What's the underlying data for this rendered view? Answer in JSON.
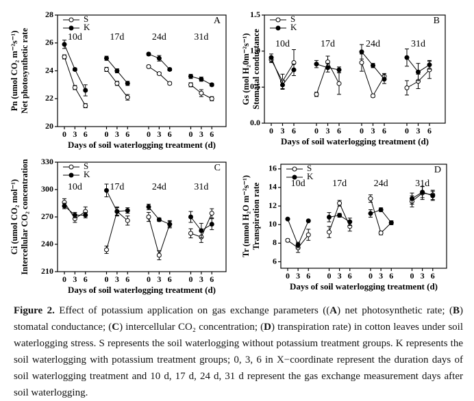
{
  "chart_data": [
    {
      "type": "line",
      "panel": "A",
      "y_label": [
        "Pn (umol CO₂ m⁻²s⁻¹)",
        "Net photosynthetic rate"
      ],
      "x_label": "Days of soil waterlogging treatment (d)",
      "groups": [
        "10d",
        "17d",
        "24d",
        "31d"
      ],
      "x": [
        0,
        3,
        6
      ],
      "ylim": [
        20,
        28
      ],
      "yticks": [
        20,
        22,
        24,
        26,
        28
      ],
      "legend": "upper left",
      "series": [
        {
          "name": "S",
          "color": "#000000",
          "marker_fill": "#ffffff",
          "values": [
            [
              25.0,
              22.8,
              21.5
            ],
            [
              24.1,
              23.1,
              22.1
            ],
            [
              24.3,
              23.8,
              23.1
            ],
            [
              23.0,
              22.4,
              22.0
            ]
          ],
          "errors": [
            [
              0.15,
              0.15,
              0.15
            ],
            [
              0.15,
              0.15,
              0.2
            ],
            [
              0.1,
              0.1,
              0.1
            ],
            [
              0.15,
              0.25,
              0.15
            ]
          ]
        },
        {
          "name": "K",
          "color": "#000000",
          "marker_fill": "#000000",
          "values": [
            [
              25.9,
              24.1,
              22.6
            ],
            [
              24.9,
              24.0,
              23.1
            ],
            [
              25.2,
              24.9,
              24.1
            ],
            [
              23.6,
              23.4,
              23.0
            ]
          ],
          "errors": [
            [
              0.3,
              0.1,
              0.4
            ],
            [
              0.15,
              0.15,
              0.15
            ],
            [
              0.1,
              0.2,
              0.1
            ],
            [
              0.15,
              0.15,
              0.1
            ]
          ]
        }
      ]
    },
    {
      "type": "line",
      "panel": "B",
      "y_label": [
        "Gs (mol H₂0m⁻²s⁻¹)",
        "Stomatal conductance"
      ],
      "x_label": "Days of soil waterlogging treatment (d)",
      "groups": [
        "10d",
        "17d",
        "24d",
        "31d"
      ],
      "x": [
        0,
        3,
        6
      ],
      "ylim": [
        0,
        1.5
      ],
      "yticks": [
        {
          "value": 0,
          "label": "0.0"
        },
        0.5,
        {
          "value": 1,
          "label": "1.0"
        },
        1.5
      ],
      "legend": "upper left",
      "series": [
        {
          "name": "S",
          "color": "#000000",
          "marker_fill": "#ffffff",
          "values": [
            [
              0.88,
              0.58,
              0.84
            ],
            [
              0.4,
              0.85,
              0.55
            ],
            [
              0.84,
              0.38,
              0.65
            ],
            [
              0.49,
              0.58,
              0.74
            ]
          ],
          "errors": [
            [
              0.04,
              0.1,
              0.18
            ],
            [
              0.03,
              0.08,
              0.15
            ],
            [
              0.12,
              0.02,
              0.04
            ],
            [
              0.1,
              0.1,
              0.12
            ]
          ]
        },
        {
          "name": "K",
          "color": "#000000",
          "marker_fill": "#000000",
          "values": [
            [
              0.91,
              0.53,
              0.74
            ],
            [
              0.82,
              0.77,
              0.74
            ],
            [
              0.99,
              0.8,
              0.61
            ],
            [
              0.91,
              0.71,
              0.81
            ]
          ],
          "errors": [
            [
              0.05,
              0.06,
              0.08
            ],
            [
              0.05,
              0.06,
              0.04
            ],
            [
              0.1,
              0.03,
              0.06
            ],
            [
              0.12,
              0.12,
              0.06
            ]
          ]
        }
      ]
    },
    {
      "type": "line",
      "panel": "C",
      "y_label": [
        "Ci (umol CO₂ mol⁻¹)",
        "Intercellular CO₂ concentration"
      ],
      "x_label": "Days of soil waterlogging treatment (d)",
      "groups": [
        "10d",
        "17d",
        "24d",
        "31d"
      ],
      "x": [
        0,
        3,
        6
      ],
      "ylim": [
        210,
        330
      ],
      "yticks": [
        210,
        240,
        270,
        300,
        330
      ],
      "legend": "upper left",
      "series": [
        {
          "name": "S",
          "color": "#000000",
          "marker_fill": "#ffffff",
          "values": [
            [
              286,
              268,
              276
            ],
            [
              234,
              276,
              266
            ],
            [
              270,
              228,
              262
            ],
            [
              252,
              248,
              274
            ]
          ],
          "errors": [
            [
              4,
              4,
              5
            ],
            [
              4,
              5,
              5
            ],
            [
              5,
              5,
              4
            ],
            [
              5,
              6,
              5
            ]
          ]
        },
        {
          "name": "K",
          "color": "#000000",
          "marker_fill": "#000000",
          "values": [
            [
              282,
              272,
              272
            ],
            [
              299,
              276,
              277
            ],
            [
              281,
              267,
              262
            ],
            [
              270,
              255,
              262
            ]
          ],
          "errors": [
            [
              3,
              3,
              3
            ],
            [
              7,
              4,
              3
            ],
            [
              3,
              2,
              3
            ],
            [
              6,
              8,
              6
            ]
          ]
        }
      ]
    },
    {
      "type": "line",
      "panel": "D",
      "y_label": [
        "Tr (mmol H₂O m⁻²s⁻¹)",
        "Transpiration rate"
      ],
      "x_label": "Days of soil waterlogging treatment (d)",
      "groups": [
        "10d",
        "17d",
        "24d",
        "31d"
      ],
      "x": [
        0,
        3,
        6
      ],
      "ylim": [
        5.3,
        16.5
      ],
      "yticks": [
        6,
        8,
        10,
        12,
        14,
        16
      ],
      "legend": "upper left",
      "series": [
        {
          "name": "S",
          "color": "#000000",
          "marker_fill": "#ffffff",
          "values": [
            [
              8.3,
              7.5,
              8.9
            ],
            [
              9.2,
              12.3,
              9.8
            ],
            [
              12.8,
              9.1,
              10.2
            ],
            [
              12.5,
              13.4,
              13.2
            ]
          ],
          "errors": [
            [
              0.15,
              0.5,
              0.6
            ],
            [
              0.6,
              0.3,
              0.5
            ],
            [
              0.4,
              0.2,
              0.2
            ],
            [
              0.6,
              0.7,
              0.5
            ]
          ]
        },
        {
          "name": "K",
          "color": "#000000",
          "marker_fill": "#000000",
          "values": [
            [
              10.6,
              7.8,
              10.4
            ],
            [
              10.8,
              11.0,
              10.3
            ],
            [
              11.2,
              11.6,
              10.2
            ],
            [
              12.8,
              13.5,
              13.1
            ]
          ],
          "errors": [
            [
              0.1,
              0.3,
              0.1
            ],
            [
              0.5,
              0.2,
              0.4
            ],
            [
              0.4,
              0.2,
              0.2
            ],
            [
              0.6,
              0.6,
              0.5
            ]
          ]
        }
      ]
    }
  ],
  "caption": [
    {
      "text": "Figure 2.",
      "bold": true
    },
    {
      "text": " Effect of potassium application on gas exchange parameters ((",
      "bold": false
    },
    {
      "text": "A",
      "bold": true
    },
    {
      "text": ") net photosynthetic rate; (",
      "bold": false
    },
    {
      "text": "B",
      "bold": true
    },
    {
      "text": ") stomatal conductance; (",
      "bold": false
    },
    {
      "text": "C",
      "bold": true
    },
    {
      "text": ") intercellular CO₂ concentration; (",
      "bold": false
    },
    {
      "text": "D",
      "bold": true
    },
    {
      "text": ") transpiration rate) in cotton leaves under soil waterlogging stress. S represents the soil waterlogging without potassium treatment groups. K represents the soil waterlogging with potassium treatment groups; 0, 3, 6 in X−coordinate represent the duration days of soil waterlogging treatment and 10 d, 17 d, 24 d, 31 d represent the gas exchange measurement days after soil waterlogging.",
      "bold": false
    }
  ]
}
